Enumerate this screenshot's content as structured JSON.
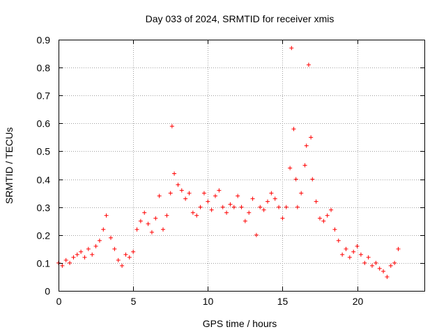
{
  "chart_data": {
    "type": "scatter",
    "title": "Day 033 of 2024, SRMTID for receiver xmis",
    "xlabel": "GPS time / hours",
    "ylabel": "SRMTID / TECUs",
    "xlim": [
      0,
      24.5
    ],
    "ylim": [
      0,
      0.9
    ],
    "xticks": [
      0,
      5,
      10,
      15,
      20
    ],
    "yticks": [
      0,
      0.1,
      0.2,
      0.3,
      0.4,
      0.5,
      0.6,
      0.7,
      0.8,
      0.9
    ],
    "xtick_labels": [
      "0",
      "5",
      "10",
      "15",
      "20"
    ],
    "ytick_labels": [
      "0",
      "0.1",
      "0.2",
      "0.3",
      "0.4",
      "0.5",
      "0.6",
      "0.7",
      "0.8",
      "0.9"
    ],
    "grid": true,
    "marker": "+",
    "marker_color": "#ff0000",
    "series": [
      {
        "name": "SRMTID",
        "x": [
          0.0,
          0.25,
          0.5,
          0.75,
          1.0,
          1.25,
          1.5,
          1.75,
          2.0,
          2.25,
          2.5,
          2.75,
          3.0,
          3.2,
          3.5,
          3.75,
          4.0,
          4.25,
          4.5,
          4.75,
          5.0,
          5.25,
          5.5,
          5.75,
          6.0,
          6.25,
          6.5,
          6.75,
          7.0,
          7.25,
          7.5,
          7.6,
          7.75,
          8.0,
          8.25,
          8.5,
          8.75,
          9.0,
          9.25,
          9.5,
          9.75,
          10.0,
          10.25,
          10.5,
          10.75,
          11.0,
          11.25,
          11.5,
          11.75,
          12.0,
          12.25,
          12.5,
          12.75,
          13.0,
          13.25,
          13.5,
          13.75,
          14.0,
          14.25,
          14.5,
          14.75,
          15.0,
          15.25,
          15.5,
          15.6,
          15.75,
          15.9,
          16.0,
          16.25,
          16.5,
          16.6,
          16.75,
          16.9,
          17.0,
          17.25,
          17.5,
          17.75,
          18.0,
          18.25,
          18.5,
          18.75,
          19.0,
          19.25,
          19.5,
          19.75,
          20.0,
          20.25,
          20.5,
          20.75,
          21.0,
          21.25,
          21.5,
          21.75,
          22.0,
          22.25,
          22.5,
          22.75
        ],
        "y": [
          0.1,
          0.09,
          0.11,
          0.1,
          0.12,
          0.13,
          0.14,
          0.12,
          0.15,
          0.13,
          0.16,
          0.18,
          0.22,
          0.27,
          0.19,
          0.15,
          0.11,
          0.09,
          0.13,
          0.12,
          0.14,
          0.22,
          0.25,
          0.28,
          0.24,
          0.21,
          0.26,
          0.34,
          0.22,
          0.27,
          0.35,
          0.59,
          0.42,
          0.38,
          0.36,
          0.33,
          0.35,
          0.28,
          0.27,
          0.3,
          0.35,
          0.32,
          0.29,
          0.34,
          0.36,
          0.3,
          0.28,
          0.31,
          0.3,
          0.34,
          0.3,
          0.25,
          0.28,
          0.33,
          0.2,
          0.3,
          0.29,
          0.32,
          0.35,
          0.33,
          0.3,
          0.26,
          0.3,
          0.44,
          0.87,
          0.58,
          0.4,
          0.3,
          0.35,
          0.45,
          0.52,
          0.81,
          0.55,
          0.4,
          0.32,
          0.26,
          0.25,
          0.27,
          0.29,
          0.22,
          0.18,
          0.13,
          0.15,
          0.12,
          0.14,
          0.16,
          0.13,
          0.1,
          0.12,
          0.09,
          0.1,
          0.08,
          0.07,
          0.05,
          0.09,
          0.1,
          0.15
        ]
      }
    ]
  }
}
